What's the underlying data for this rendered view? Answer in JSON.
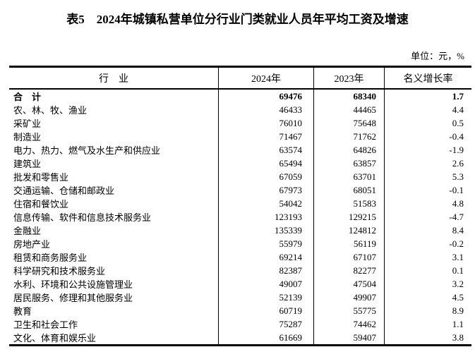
{
  "title": "表5　2024年城镇私营单位分行业门类就业人员年平均工资及增速",
  "unit_note": "单位：元，%",
  "table": {
    "columns": [
      "行　业",
      "2024年",
      "2023年",
      "名义增长率"
    ],
    "rows": [
      {
        "industry": "合　计",
        "y2024": "69476",
        "y2023": "68340",
        "growth": "1.7",
        "bold": true
      },
      {
        "industry": "农、林、牧、渔业",
        "y2024": "46433",
        "y2023": "44465",
        "growth": "4.4",
        "bold": false
      },
      {
        "industry": "采矿业",
        "y2024": "76010",
        "y2023": "75648",
        "growth": "0.5",
        "bold": false
      },
      {
        "industry": "制造业",
        "y2024": "71467",
        "y2023": "71762",
        "growth": "-0.4",
        "bold": false
      },
      {
        "industry": "电力、热力、燃气及水生产和供应业",
        "y2024": "63574",
        "y2023": "64826",
        "growth": "-1.9",
        "bold": false
      },
      {
        "industry": "建筑业",
        "y2024": "65494",
        "y2023": "63857",
        "growth": "2.6",
        "bold": false
      },
      {
        "industry": "批发和零售业",
        "y2024": "67059",
        "y2023": "63701",
        "growth": "5.3",
        "bold": false
      },
      {
        "industry": "交通运输、仓储和邮政业",
        "y2024": "67973",
        "y2023": "68051",
        "growth": "-0.1",
        "bold": false
      },
      {
        "industry": "住宿和餐饮业",
        "y2024": "54042",
        "y2023": "51583",
        "growth": "4.8",
        "bold": false
      },
      {
        "industry": "信息传输、软件和信息技术服务业",
        "y2024": "123193",
        "y2023": "129215",
        "growth": "-4.7",
        "bold": false
      },
      {
        "industry": "金融业",
        "y2024": "135339",
        "y2023": "124812",
        "growth": "8.4",
        "bold": false
      },
      {
        "industry": "房地产业",
        "y2024": "55979",
        "y2023": "56119",
        "growth": "-0.2",
        "bold": false
      },
      {
        "industry": "租赁和商务服务业",
        "y2024": "69214",
        "y2023": "67107",
        "growth": "3.1",
        "bold": false
      },
      {
        "industry": "科学研究和技术服务业",
        "y2024": "82387",
        "y2023": "82277",
        "growth": "0.1",
        "bold": false
      },
      {
        "industry": "水利、环境和公共设施管理业",
        "y2024": "49007",
        "y2023": "47504",
        "growth": "3.2",
        "bold": false
      },
      {
        "industry": "居民服务、修理和其他服务业",
        "y2024": "52139",
        "y2023": "49907",
        "growth": "4.5",
        "bold": false
      },
      {
        "industry": "教育",
        "y2024": "60719",
        "y2023": "55775",
        "growth": "8.9",
        "bold": false
      },
      {
        "industry": "卫生和社会工作",
        "y2024": "75287",
        "y2023": "74462",
        "growth": "1.1",
        "bold": false
      },
      {
        "industry": "文化、体育和娱乐业",
        "y2024": "61669",
        "y2023": "59407",
        "growth": "3.8",
        "bold": false
      }
    ]
  }
}
